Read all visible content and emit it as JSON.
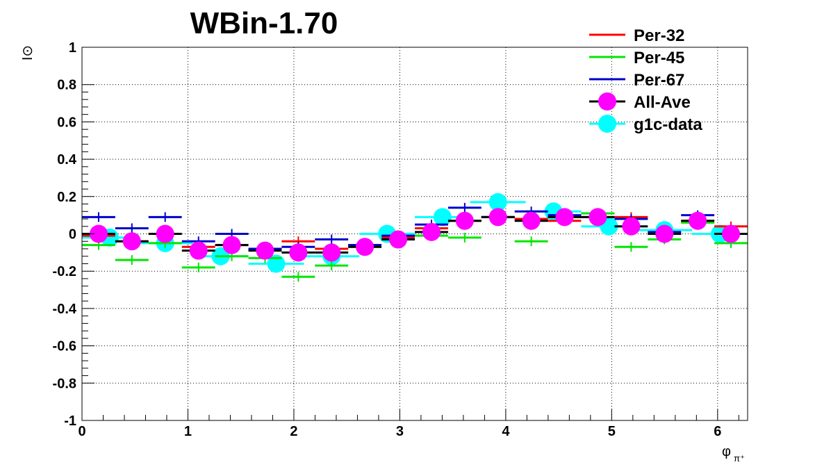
{
  "chart_data": {
    "type": "scatter",
    "title": "WBin-1.70",
    "xlabel": "φ",
    "xlabel_sub": "π⁺",
    "ylabel": "I⊙",
    "xlim": [
      0,
      6.2832
    ],
    "ylim": [
      -1,
      1
    ],
    "x_ticks": [
      "0",
      "1",
      "2",
      "3",
      "4",
      "5",
      "6"
    ],
    "y_ticks": [
      "-1",
      "-0.8",
      "-0.6",
      "-0.4",
      "-0.2",
      "0",
      "0.2",
      "0.4",
      "0.6",
      "0.8",
      "1"
    ],
    "grid": true,
    "legend_position": "top-right",
    "series": [
      {
        "name": "Per-32",
        "color": "#ff0000",
        "marker": "hbar",
        "x": [
          0.157,
          0.471,
          0.785,
          1.1,
          1.414,
          1.728,
          2.042,
          2.356,
          2.67,
          2.985,
          3.299,
          3.613,
          3.927,
          4.241,
          4.555,
          4.869,
          5.184,
          5.498,
          5.812,
          6.126
        ],
        "values": [
          -0.01,
          -0.04,
          0.0,
          -0.07,
          -0.06,
          -0.08,
          -0.04,
          -0.08,
          -0.06,
          -0.02,
          0.03,
          0.07,
          0.09,
          0.08,
          0.07,
          0.11,
          0.09,
          0.0,
          0.07,
          0.04
        ],
        "x_err": 0.157
      },
      {
        "name": "Per-45",
        "color": "#00e600",
        "marker": "hbar",
        "x": [
          0.157,
          0.471,
          0.785,
          1.1,
          1.414,
          1.728,
          2.042,
          2.356,
          2.67,
          2.985,
          3.299,
          3.613,
          3.927,
          4.241,
          4.555,
          4.869,
          5.184,
          5.498,
          5.812,
          6.126
        ],
        "values": [
          -0.06,
          -0.14,
          -0.05,
          -0.18,
          -0.12,
          -0.13,
          -0.23,
          -0.17,
          -0.07,
          -0.03,
          -0.01,
          -0.02,
          0.09,
          -0.04,
          0.09,
          0.11,
          -0.07,
          -0.03,
          0.06,
          -0.05
        ],
        "x_err": 0.157
      },
      {
        "name": "Per-67",
        "color": "#0000cc",
        "marker": "hbar",
        "x": [
          0.157,
          0.471,
          0.785,
          1.1,
          1.414,
          1.728,
          2.042,
          2.356,
          2.67,
          2.985,
          3.299,
          3.613,
          3.927,
          4.241,
          4.555,
          4.869,
          5.184,
          5.498,
          5.812,
          6.126
        ],
        "values": [
          0.09,
          0.03,
          0.09,
          -0.04,
          0.0,
          -0.08,
          -0.07,
          -0.03,
          -0.06,
          -0.01,
          0.05,
          0.14,
          0.09,
          0.12,
          0.1,
          0.09,
          0.08,
          0.01,
          0.1,
          0.0
        ],
        "x_err": 0.157
      },
      {
        "name": "All-Ave",
        "color": "#ff00ff",
        "marker": "circle",
        "bar_color": "#000000",
        "x": [
          0.157,
          0.471,
          0.785,
          1.1,
          1.414,
          1.728,
          2.042,
          2.356,
          2.67,
          2.985,
          3.299,
          3.613,
          3.927,
          4.241,
          4.555,
          4.869,
          5.184,
          5.498,
          5.812,
          6.126
        ],
        "values": [
          0.0,
          -0.04,
          0.0,
          -0.09,
          -0.06,
          -0.09,
          -0.1,
          -0.1,
          -0.07,
          -0.03,
          0.01,
          0.07,
          0.09,
          0.07,
          0.09,
          0.09,
          0.04,
          0.0,
          0.07,
          0.0
        ],
        "x_err": 0.157
      },
      {
        "name": "g1c-data",
        "color": "#00ffff",
        "marker": "circle",
        "x": [
          0.262,
          0.785,
          1.309,
          1.833,
          2.356,
          2.88,
          3.403,
          3.927,
          4.451,
          4.974,
          5.498,
          6.021
        ],
        "values": [
          -0.02,
          -0.05,
          -0.12,
          -0.16,
          -0.12,
          0.0,
          0.09,
          0.17,
          0.12,
          0.04,
          0.02,
          0.0
        ],
        "x_err": 0.262
      }
    ]
  }
}
